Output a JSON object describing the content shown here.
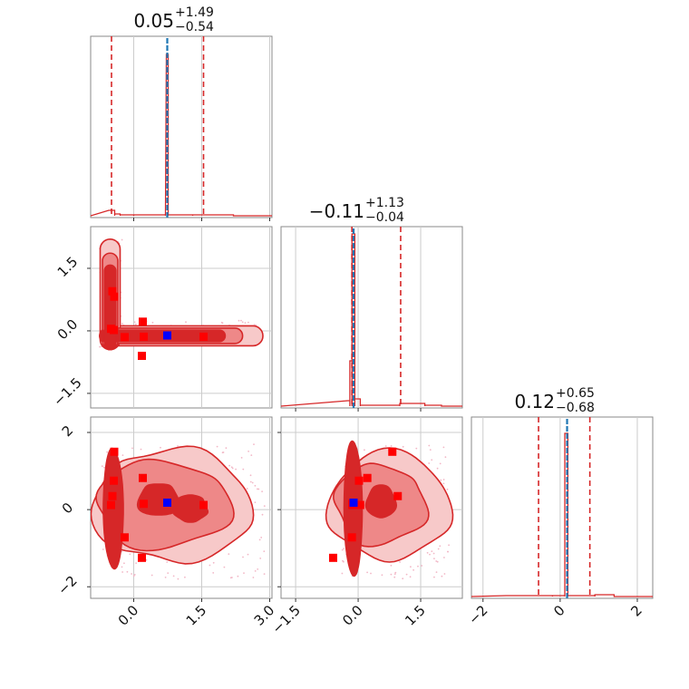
{
  "chart_data": {
    "type": "corner",
    "colors": {
      "contour_line": "#d62728",
      "fill_outer": "#f7c9c9",
      "fill_mid": "#ee8888",
      "fill_inner": "#d62728",
      "quantile_line": "#d62728",
      "truth_line": "#1f77b4",
      "sample_marker": "#ff0000",
      "best_marker": "#0000ff",
      "scatter_dots": "#f2b7c6"
    },
    "parameters": [
      {
        "title": {
          "median": "0.05",
          "plus": "+1.49",
          "minus": "−0.54"
        },
        "range": [
          -0.95,
          3.05
        ],
        "ticks": [
          0.0,
          1.5,
          3.0
        ],
        "tick_labels": [
          "0.0",
          "1.5",
          "3.0"
        ],
        "quantiles": [
          -0.49,
          1.54
        ],
        "truth": 0.74
      },
      {
        "title": {
          "median": "−0.11",
          "plus": "+1.13",
          "minus": "−0.04"
        },
        "range": [
          -1.85,
          2.5
        ],
        "ticks": [
          -1.5,
          0.0,
          1.5
        ],
        "tick_labels": [
          "−1.5",
          "0.0",
          "1.5"
        ],
        "quantiles": [
          -0.15,
          1.02
        ],
        "truth": -0.11
      },
      {
        "title": {
          "median": "0.12",
          "plus": "+0.65",
          "minus": "−0.68"
        },
        "range": [
          -2.3,
          2.4
        ],
        "ticks": [
          -2,
          0,
          2
        ],
        "tick_labels": [
          "−2",
          "0",
          "2"
        ],
        "quantiles": [
          -0.56,
          0.77
        ],
        "truth": 0.18
      }
    ],
    "samples": [
      [
        -0.47,
        0.95,
        0.35
      ],
      [
        -0.43,
        0.82,
        1.5
      ],
      [
        -0.44,
        0.02,
        0.75
      ],
      [
        -0.5,
        0.05,
        0.12
      ],
      [
        0.2,
        0.22,
        0.82
      ],
      [
        0.22,
        -0.14,
        0.15
      ],
      [
        0.18,
        -0.6,
        -1.25
      ],
      [
        1.54,
        -0.14,
        0.12
      ],
      [
        -0.2,
        -0.15,
        -0.72
      ]
    ],
    "best_fit": [
      0.74,
      -0.11,
      0.18
    ]
  }
}
